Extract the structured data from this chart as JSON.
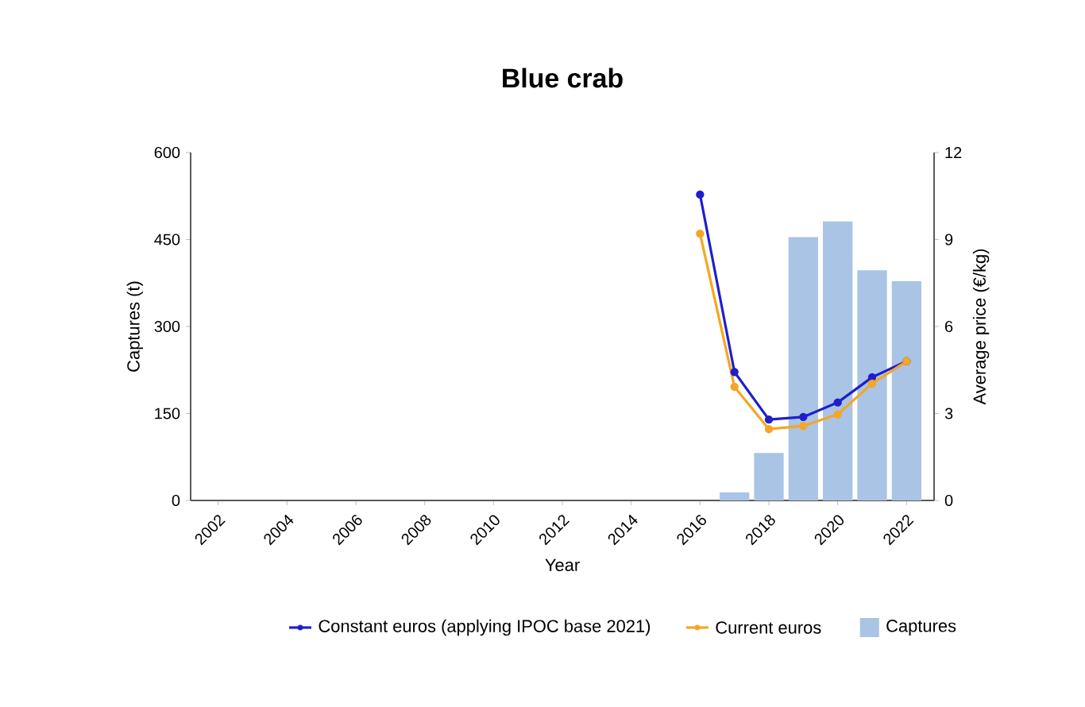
{
  "chart_data": {
    "type": "bar",
    "title": "Blue crab",
    "xlabel": "Year",
    "ylabel": "Captures (t)",
    "y2label": "Average price (€/kg)",
    "x": [
      2016,
      2017,
      2018,
      2019,
      2020,
      2021,
      2022
    ],
    "series": [
      {
        "name": "Constant euros (applying IPOC base 2021)",
        "type": "line",
        "axis": "y2",
        "color": "#1f1fcc",
        "marker": "circle",
        "values": [
          10.55,
          4.43,
          2.79,
          2.88,
          3.38,
          4.25,
          4.8
        ]
      },
      {
        "name": "Current euros",
        "type": "line",
        "axis": "y2",
        "color": "#f5a623",
        "marker": "circle",
        "values": [
          9.2,
          3.92,
          2.46,
          2.57,
          2.97,
          4.03,
          4.8
        ]
      },
      {
        "name": "Captures",
        "color": "#aac4e6",
        "values": [
          null,
          14,
          82,
          454,
          481,
          397,
          378
        ]
      }
    ],
    "xlim": [
      2001.2,
      2022.8
    ],
    "xticks": [
      2002,
      2004,
      2006,
      2008,
      2010,
      2012,
      2014,
      2016,
      2018,
      2020,
      2022
    ],
    "ylim": [
      0,
      600
    ],
    "yticks": [
      0,
      150,
      300,
      450,
      600
    ],
    "y2lim": [
      0,
      12
    ],
    "y2ticks": [
      0,
      3,
      6,
      9,
      12
    ],
    "legend": "bottom",
    "grid": false
  }
}
